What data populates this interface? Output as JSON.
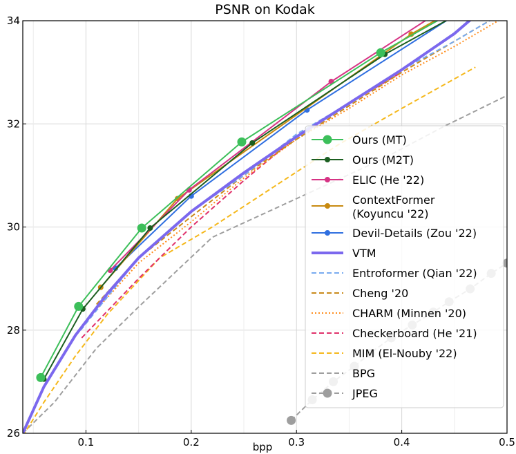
{
  "chart_data": {
    "type": "line",
    "title": "PSNR on Kodak",
    "xlabel": "bpp",
    "ylabel": "",
    "xlim": [
      0.04,
      0.5
    ],
    "ylim": [
      26,
      34
    ],
    "xticks": [
      0.1,
      0.2,
      0.3,
      0.4,
      0.5
    ],
    "xtick_labels": [
      "0.1",
      "0.2",
      "0.3",
      "0.4",
      "0.5"
    ],
    "yticks": [
      26,
      28,
      30,
      32,
      34
    ],
    "ytick_labels": [
      "26",
      "28",
      "30",
      "32",
      "34"
    ],
    "grid": true,
    "legend_position": "right",
    "series": [
      {
        "name": "Ours (MT)",
        "label_lines": [
          "Ours (MT)"
        ],
        "color": "#3cbf5a",
        "style": "solid",
        "width": 2,
        "marker": "circle",
        "marker_size": 6.5,
        "x": [
          0.057,
          0.093,
          0.153,
          0.248,
          0.38,
          0.46
        ],
        "y": [
          27.08,
          28.46,
          29.98,
          31.65,
          33.38,
          34.3
        ]
      },
      {
        "name": "Ours (M2T)",
        "label_lines": [
          "Ours (M2T)"
        ],
        "color": "#1b5e20",
        "style": "solid",
        "width": 2,
        "marker": "circle",
        "marker_size": 4,
        "x": [
          0.06,
          0.097,
          0.161,
          0.258,
          0.384,
          0.46
        ],
        "y": [
          27.05,
          28.41,
          29.98,
          31.63,
          33.35,
          34.2
        ]
      },
      {
        "name": "ELIC (He '22)",
        "label_lines": [
          "ELIC (He '22)"
        ],
        "color": "#d63384",
        "style": "solid",
        "width": 2,
        "marker": "circle",
        "marker_size": 4,
        "x": [
          0.123,
          0.198,
          0.333,
          0.43
        ],
        "y": [
          29.16,
          30.72,
          32.82,
          34.1
        ]
      },
      {
        "name": "ContextFormer (Koyuncu '22)",
        "label_lines": [
          "ContextFormer",
          "(Koyuncu '22)"
        ],
        "color": "#c88a10",
        "style": "solid",
        "width": 2,
        "marker": "circle",
        "marker_size": 4,
        "x": [
          0.114,
          0.187,
          0.409,
          0.44
        ],
        "y": [
          28.83,
          30.55,
          33.74,
          34.1
        ]
      },
      {
        "name": "Devil-Details (Zou '22)",
        "label_lines": [
          "Devil-Details (Zou '22)"
        ],
        "color": "#2f6fe0",
        "style": "solid",
        "width": 2,
        "marker": "circle",
        "marker_size": 4,
        "x": [
          0.128,
          0.2,
          0.31,
          0.45
        ],
        "y": [
          29.2,
          30.6,
          32.27,
          34.1
        ]
      },
      {
        "name": "VTM",
        "label_lines": [
          "VTM"
        ],
        "color": "#7b68ee",
        "style": "solid",
        "width": 4,
        "marker": "none",
        "x": [
          0.04,
          0.06,
          0.09,
          0.12,
          0.15,
          0.2,
          0.25,
          0.3,
          0.35,
          0.4,
          0.45,
          0.47
        ],
        "y": [
          26.0,
          26.9,
          27.9,
          28.7,
          29.4,
          30.3,
          31.05,
          31.75,
          32.4,
          33.05,
          33.75,
          34.1
        ]
      },
      {
        "name": "Entroformer (Qian '22)",
        "label_lines": [
          "Entroformer (Qian '22)"
        ],
        "color": "#77aaf0",
        "style": "dash",
        "width": 2,
        "marker": "none",
        "x": [
          0.095,
          0.15,
          0.2,
          0.25,
          0.3,
          0.35,
          0.4,
          0.45,
          0.5
        ],
        "y": [
          28.0,
          29.4,
          30.3,
          31.0,
          31.8,
          32.4,
          33.05,
          33.6,
          34.2
        ]
      },
      {
        "name": "Cheng '20",
        "label_lines": [
          "Cheng '20"
        ],
        "color": "#c98a1a",
        "style": "dash",
        "width": 2,
        "marker": "none",
        "x": [
          0.11,
          0.15,
          0.2,
          0.25,
          0.3,
          0.35,
          0.4,
          0.45,
          0.5
        ],
        "y": [
          28.5,
          29.4,
          30.2,
          31.0,
          31.7,
          32.35,
          33.0,
          33.6,
          34.2
        ]
      },
      {
        "name": "CHARM (Minnen '20)",
        "label_lines": [
          "CHARM (Minnen '20)"
        ],
        "color": "#ff8c1a",
        "style": "dot",
        "width": 2,
        "marker": "none",
        "x": [
          0.11,
          0.15,
          0.2,
          0.25,
          0.3,
          0.35,
          0.4,
          0.45,
          0.5
        ],
        "y": [
          28.4,
          29.3,
          30.1,
          30.95,
          31.7,
          32.3,
          32.95,
          33.5,
          34.1
        ]
      },
      {
        "name": "Checkerboard (He '21)",
        "label_lines": [
          "Checkerboard (He '21)"
        ],
        "color": "#e0306a",
        "style": "dash",
        "width": 2,
        "marker": "none",
        "x": [
          0.096,
          0.15,
          0.2,
          0.25,
          0.3,
          0.35,
          0.4
        ],
        "y": [
          27.85,
          29.0,
          30.0,
          30.9,
          31.75,
          32.4,
          33.0
        ]
      },
      {
        "name": "MIM (El-Nouby '22)",
        "label_lines": [
          "MIM (El-Nouby '22)"
        ],
        "color": "#f5b81b",
        "style": "dash",
        "width": 2,
        "marker": "none",
        "x": [
          0.04,
          0.06,
          0.09,
          0.12,
          0.17,
          0.22,
          0.28,
          0.34,
          0.4,
          0.47
        ],
        "y": [
          25.95,
          26.6,
          27.5,
          28.3,
          29.4,
          30.0,
          30.8,
          31.6,
          32.3,
          33.1
        ]
      },
      {
        "name": "BPG",
        "label_lines": [
          "BPG"
        ],
        "color": "#9e9e9e",
        "style": "dash",
        "width": 2,
        "marker": "none",
        "x": [
          0.04,
          0.07,
          0.11,
          0.15,
          0.22,
          0.3,
          0.38,
          0.44,
          0.5
        ],
        "y": [
          26.0,
          26.6,
          27.65,
          28.45,
          29.8,
          30.55,
          31.3,
          31.95,
          32.55
        ]
      },
      {
        "name": "JPEG",
        "label_lines": [
          "JPEG"
        ],
        "color": "#9e9e9e",
        "style": "dash",
        "width": 2,
        "marker": "circle",
        "marker_size": 6.5,
        "x": [
          0.295,
          0.315,
          0.335,
          0.355,
          0.37,
          0.39,
          0.41,
          0.43,
          0.445,
          0.465,
          0.485,
          0.5
        ],
        "y": [
          26.25,
          26.65,
          27.0,
          27.3,
          27.55,
          27.85,
          28.1,
          28.35,
          28.55,
          28.8,
          29.1,
          29.3
        ]
      }
    ]
  }
}
